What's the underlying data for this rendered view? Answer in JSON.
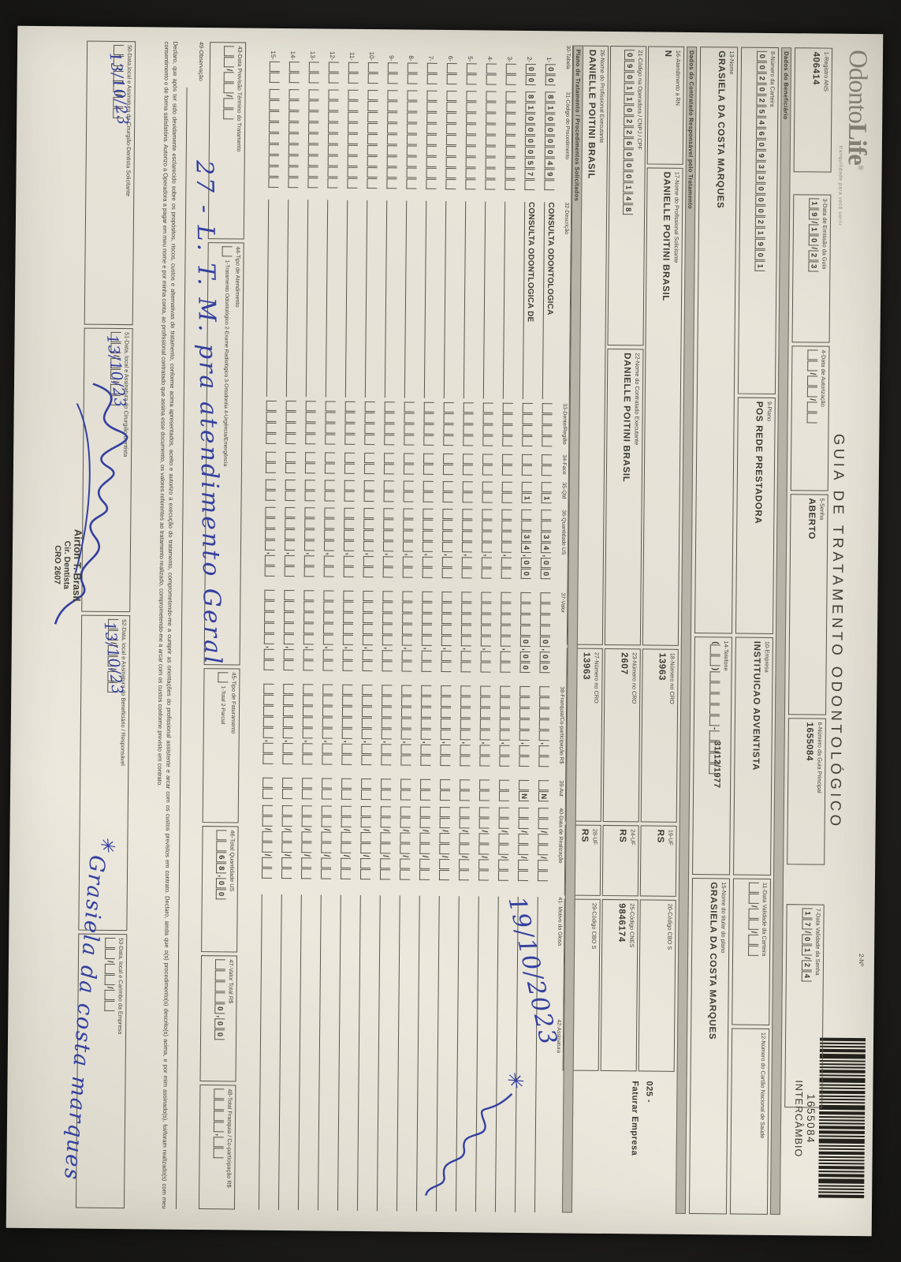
{
  "scan": {
    "ink_color": "#33409f",
    "paper_color": "#e6e2d7"
  },
  "header": {
    "logo_text_a": "Odonto",
    "logo_text_b": "Life",
    "logo_reg": "®",
    "tagline": "tranquilidade para você sorrir",
    "title": "GUIA DE TRATAMENTO ODONTOLÓGICO",
    "no_label": "2-Nº",
    "barcode_number": "1655084",
    "barcode_caption": "INTERCÂMBIO"
  },
  "row_a": {
    "f1": {
      "label": "1-Registro ANS",
      "value": "406414"
    },
    "f3": {
      "label": "3-Data de Emissão da Guia",
      "cells": [
        "1",
        "9",
        "/",
        "1",
        "0",
        "/",
        "2",
        "3"
      ]
    },
    "f4": {
      "label": "4-Data de Autorização",
      "cells": [
        "",
        "",
        "/",
        "",
        "",
        "/",
        "",
        ""
      ]
    },
    "f5": {
      "label": "5-Senha",
      "value": "ABERTO"
    },
    "f6": {
      "label": "6-Número da Guia Principal",
      "value": "1655084"
    },
    "f7": {
      "label": "7-Data Validade da Senha",
      "cells": [
        "1",
        "7",
        "/",
        "0",
        "1",
        "/",
        "2",
        "4"
      ]
    }
  },
  "sections": {
    "beneficiario": "Dados do Beneficiário",
    "contratado": "Dados do Contratado Responsável pelo Tratamento",
    "plano": "Plano de Tratamento / Procedimentos Solicitados"
  },
  "beneficiario": {
    "f8": {
      "label": "8-Número da Carteira",
      "cells": [
        "0",
        "0",
        "2",
        "0",
        "2",
        "5",
        "4",
        "6",
        "0",
        "9",
        "3",
        "3",
        "0",
        "0",
        "0",
        "2",
        "1",
        "9",
        "0",
        "1"
      ]
    },
    "f9": {
      "label": "9-Plano",
      "value": "POS REDE PRESTADORA"
    },
    "f10": {
      "label": "10-Empresa",
      "value": "INSTITUICAO ADVENTISTA"
    },
    "f11": {
      "label": "11-Data Validade da Carteira",
      "cells": [
        "",
        "",
        "/",
        "",
        "",
        "/",
        "",
        ""
      ]
    },
    "f12": {
      "label": "12-Número do Cartão Nacional de Saúde",
      "value": ""
    },
    "f13": {
      "label": "13-Nome",
      "value": "GRASIELA DA COSTA MARQUES",
      "birthdate": "31/12/1977"
    },
    "f14": {
      "label": "14-Telefone",
      "cells": [
        "(",
        "",
        "",
        ")",
        "",
        "",
        "",
        "",
        "",
        "-",
        "",
        "",
        "",
        ""
      ]
    },
    "f15": {
      "label": "15-Nome do titular do plano",
      "value": "GRASIELA DA COSTA MARQUES"
    }
  },
  "contratado": {
    "f16": {
      "label": "16-Atendimento a RN",
      "value": "N"
    },
    "f17": {
      "label": "17-Nome do Profissional Solicitante",
      "value": "DANIELLE POITINI BRASIL"
    },
    "f18": {
      "label": "18-Número no CRO",
      "value": "13963"
    },
    "f19": {
      "label": "19-UF",
      "value": "RS"
    },
    "f20": {
      "label": "20-Código CBO S",
      "value": ""
    },
    "margin_note_line1": "025 -",
    "margin_note_line2": "Faturar Empresa",
    "f21": {
      "label": "21-Código na Operadora / CNPJ / CPF",
      "cells": [
        "0",
        "9",
        "0",
        "1",
        "1",
        "0",
        "2",
        "2",
        "6",
        "0",
        "0",
        "0",
        "1",
        "4",
        "8"
      ]
    },
    "f22": {
      "label": "22-Nome do Contratado Executante",
      "value": "DANIELLE POITINI BRASIL"
    },
    "f23": {
      "label": "23-Número no CRO",
      "value": "2607"
    },
    "f24": {
      "label": "24-UF",
      "value": "RS"
    },
    "f25": {
      "label": "25-Código CNES",
      "value": "9846174"
    },
    "f26": {
      "label": "26-Nome do Profissional Executante",
      "value": "DANIELLE POITINI BRASIL"
    },
    "f27": {
      "label": "27-Número no CRO",
      "value": "13963"
    },
    "f28": {
      "label": "28-UF",
      "value": "RS"
    },
    "f29": {
      "label": "29-Código CBO S",
      "value": ""
    }
  },
  "table": {
    "headers": [
      "30-Tabela",
      "31-Código do Procedimento",
      "32-Descrição",
      "33-Dente/Região",
      "34-Face",
      "35-Qtd",
      "36-Quantidade US",
      "37-Valor",
      "38-Franquia/Co-participação R$",
      "39-Aut",
      "40-Data de Realização",
      "41- Motivo da Glosa",
      "42-Assinatura"
    ],
    "rows": [
      {
        "num": "1-",
        "tabela": [
          "0",
          "0"
        ],
        "codigo": [
          "8",
          "1",
          "0",
          "0",
          "0",
          "0",
          "4",
          "9",
          ""
        ],
        "desc": "CONSULTA ODONTOLOGICA",
        "dente": [
          "",
          "",
          "",
          ""
        ],
        "face": [
          "",
          ""
        ],
        "qtd": [
          "",
          "1"
        ],
        "qus": [
          "",
          "",
          "3",
          "4",
          ",",
          "0",
          "0"
        ],
        "valor": [
          "",
          "",
          "",
          "",
          "0",
          ",",
          "0",
          "0"
        ],
        "franquia": [
          "",
          "",
          "",
          "",
          "",
          ",",
          "",
          ""
        ],
        "aut": [
          "",
          "N"
        ],
        "data": [
          "",
          "",
          "/",
          "",
          "",
          "/",
          "",
          ""
        ]
      },
      {
        "num": "2-",
        "tabela": [
          "0",
          "0"
        ],
        "codigo": [
          "8",
          "1",
          "0",
          "0",
          "0",
          "0",
          "5",
          "7",
          ""
        ],
        "desc": "CONSULTA ODONTLOGICA DE",
        "dente": [
          "",
          "",
          "",
          ""
        ],
        "face": [
          "",
          ""
        ],
        "qtd": [
          "",
          "1"
        ],
        "qus": [
          "",
          "",
          "3",
          "4",
          ",",
          "0",
          "0"
        ],
        "valor": [
          "",
          "",
          "",
          "",
          "0",
          ",",
          "0",
          "0"
        ],
        "franquia": [
          "",
          "",
          "",
          "",
          "",
          ",",
          "",
          ""
        ],
        "aut": [
          "",
          "N"
        ],
        "data": [
          "",
          "",
          "/",
          "",
          "",
          "/",
          "",
          ""
        ]
      }
    ],
    "empty_row_numbers": [
      "3-",
      "4-",
      "5-",
      "6-",
      "7-",
      "8-",
      "9-",
      "10-",
      "11-",
      "12-",
      "13-",
      "14-",
      "15-"
    ]
  },
  "totals": {
    "f43": {
      "label": "43-Data Previsão Término do Tratamento",
      "cells": [
        "",
        "",
        "/",
        "",
        "",
        "/",
        "",
        ""
      ]
    },
    "f44": {
      "label": "44-Tipo de Atendimento",
      "options": "1-Tratamento Odontológico  2-Exame Radiológico  3-Ortodontia  4-Urgência/Emergência"
    },
    "f45": {
      "label": "45-Tipo de Faturamento",
      "options": "1-Total  2-Parcial"
    },
    "f46": {
      "label": "46-Total Quantidade US",
      "cells": [
        "",
        "",
        "6",
        "8",
        ",",
        "0",
        "0"
      ]
    },
    "f47": {
      "label": "47-Valor Total R$",
      "cells": [
        "",
        "",
        "",
        "",
        "0",
        ",",
        "0",
        "0"
      ]
    },
    "f48": {
      "label": "48-Total Franquia / Co-participação R$",
      "cells": [
        "",
        "",
        "",
        "",
        ",",
        "",
        ""
      ]
    }
  },
  "observacao": {
    "label": "49-Observação",
    "handwriting": "27 - L. T. M.  pra atendimento Geral"
  },
  "declaration": "Declaro, que após ter sido devidamente esclarecido sobre os propósitos, riscos, custos e alternativas de tratamento, conforme acima apresentados, aceito e autorizo a execução do tratamento, comprometendo-me a cumprir as orientações do profissional assistente e arcar com os custos previstos em contrato. Declaro, ainda que o(s) procedimento(s) descrito(s) acima, e por mim assinado(s), foi/foram realizado(s) com meu consentimento e de forma satisfatória. Autorizo a Operadora a pagar em meu nome e por minha conta, ao profissional contratado que assina esse documento, os valores referentes ao tratamento realizado, comprometendo-me a arcar com os custos conforme previsto em contrato.",
  "signatures": {
    "f50": {
      "label": "50-Data,local e Assinatura do Cirurgião-Dentista Solicitante",
      "cells": [
        "",
        "",
        "/",
        "",
        "",
        "/",
        "",
        ""
      ],
      "hw_date": "13/10/23"
    },
    "f51": {
      "label": "51-Data, local e Assinatura do Cirurgião-Dentista",
      "cells": [
        "",
        "",
        "/",
        "",
        "",
        "/",
        "",
        ""
      ],
      "hw_date": "13/10/23"
    },
    "f52": {
      "label": "52-Data, local e Assinatura do Beneficiário / Responsável",
      "cells": [
        "",
        "",
        "/",
        "",
        "",
        "/",
        "",
        ""
      ],
      "hw_date": "13/10/23",
      "hw_signature": "Grasiela da costa marques"
    },
    "f53": {
      "label": "53-Data, local e Carimbo da Empresa",
      "cells": [
        "",
        "",
        "/",
        "",
        "",
        "/",
        "",
        ""
      ]
    },
    "stamp_line1": "Airton T. Brasil",
    "stamp_line2": "Cir. Dentista",
    "stamp_line3": "CRO 2607"
  },
  "handwriting": {
    "realizacao_date": "19/10/2023",
    "realizacao_mark": "✳"
  }
}
